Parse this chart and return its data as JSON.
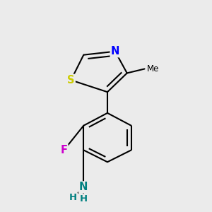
{
  "background_color": "#ebebeb",
  "bond_color": "#000000",
  "bond_width": 1.5,
  "atoms": {
    "S": {
      "color": "#cccc00"
    },
    "N": {
      "color": "#0000ff"
    },
    "F": {
      "color": "#cc00cc"
    },
    "NH2_N": {
      "color": "#008080"
    },
    "NH2_H": {
      "color": "#008080"
    },
    "Me_line": {
      "color": "#000000"
    }
  },
  "figsize": [
    3.0,
    3.0
  ],
  "dpi": 100
}
